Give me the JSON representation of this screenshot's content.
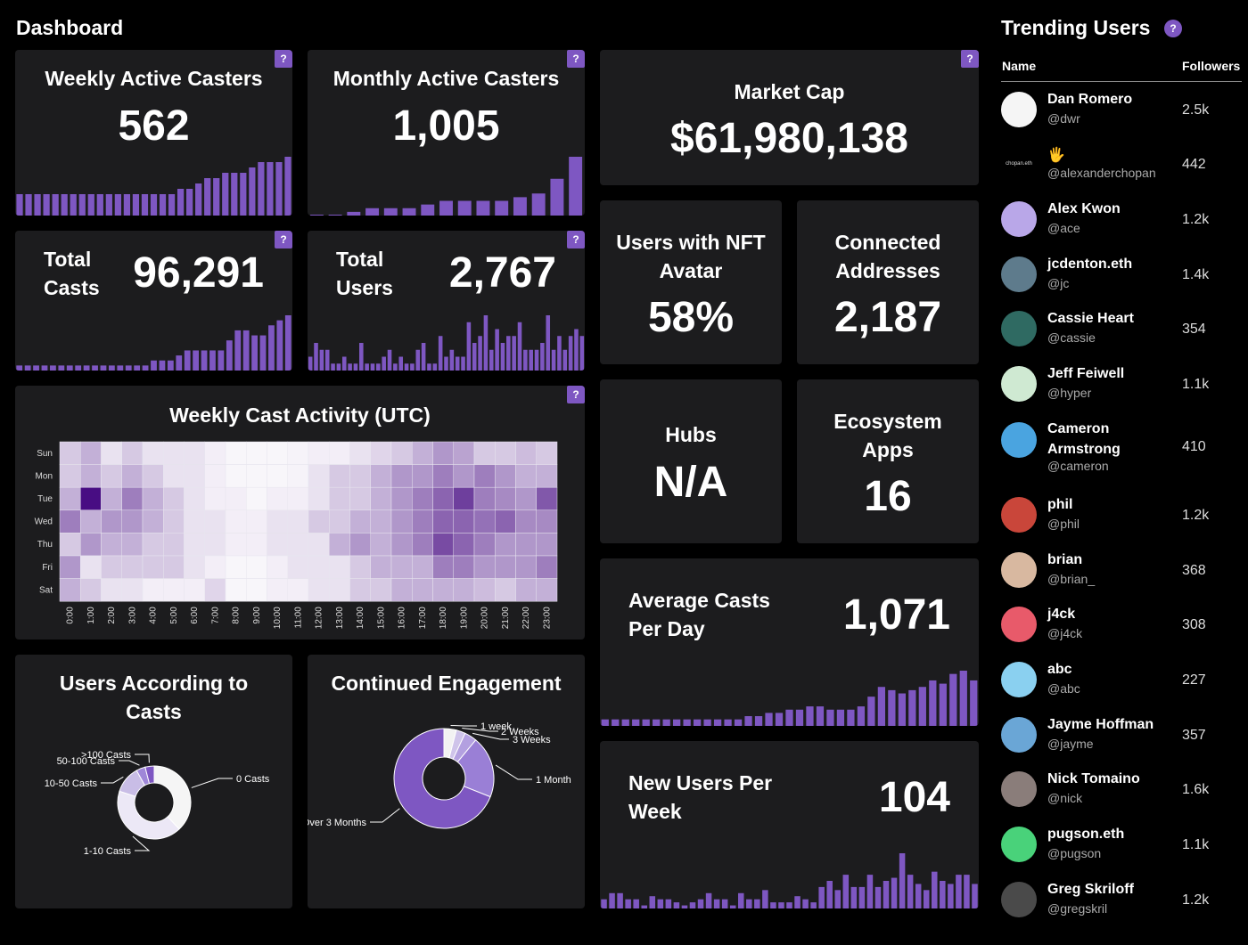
{
  "header": {
    "title": "Dashboard"
  },
  "colors": {
    "accent": "#7e57c2",
    "card": "#1c1c1e",
    "bar": "#7e57c2"
  },
  "help_label": "?",
  "cards": {
    "weekly_active": {
      "title": "Weekly Active Casters",
      "value": "562",
      "bars": [
        4,
        4,
        4,
        4,
        4,
        4,
        4,
        4,
        4,
        4,
        4,
        4,
        4,
        4,
        4,
        4,
        4,
        4,
        5,
        5,
        6,
        7,
        7,
        8,
        8,
        8,
        9,
        10,
        10,
        10,
        11
      ]
    },
    "monthly_active": {
      "title": "Monthly Active Casters",
      "value": "1,005",
      "bars": [
        0,
        0,
        1,
        2,
        2,
        2,
        3,
        4,
        4,
        4,
        4,
        5,
        6,
        10,
        16
      ]
    },
    "total_casts": {
      "title": "Total Casts",
      "value": "96,291",
      "bars": [
        1,
        1,
        1,
        1,
        1,
        1,
        1,
        1,
        1,
        1,
        1,
        1,
        1,
        1,
        1,
        1,
        2,
        2,
        2,
        3,
        4,
        4,
        4,
        4,
        4,
        6,
        8,
        8,
        7,
        7,
        9,
        10,
        11
      ]
    },
    "total_users": {
      "title": "Total Users",
      "value": "2,767",
      "bars": [
        2,
        4,
        3,
        3,
        1,
        1,
        2,
        1,
        1,
        4,
        1,
        1,
        1,
        2,
        3,
        1,
        2,
        1,
        1,
        3,
        4,
        1,
        1,
        5,
        2,
        3,
        2,
        2,
        7,
        4,
        5,
        8,
        3,
        6,
        4,
        5,
        5,
        7,
        3,
        3,
        3,
        4,
        8,
        3,
        5,
        3,
        5,
        6,
        5
      ]
    },
    "market_cap": {
      "title": "Market Cap",
      "value": "$61,980,138"
    },
    "nft_avatar": {
      "title": "Users with NFT Avatar",
      "value": "58%"
    },
    "connected": {
      "title": "Connected Addresses",
      "value": "2,187"
    },
    "hubs": {
      "title": "Hubs",
      "value": "N/A"
    },
    "apps": {
      "title": "Ecosystem Apps",
      "value": "16"
    },
    "avg_casts": {
      "title": "Average Casts Per Day",
      "value": "1,071",
      "bars": [
        2,
        2,
        2,
        2,
        2,
        2,
        2,
        2,
        2,
        2,
        2,
        2,
        2,
        2,
        3,
        3,
        4,
        4,
        5,
        5,
        6,
        6,
        5,
        5,
        5,
        6,
        9,
        12,
        11,
        10,
        11,
        12,
        14,
        13,
        16,
        17,
        14
      ]
    },
    "new_users": {
      "title": "New Users Per Week",
      "value": "104",
      "bars": [
        3,
        5,
        5,
        3,
        3,
        1,
        4,
        3,
        3,
        2,
        1,
        2,
        3,
        5,
        3,
        3,
        1,
        5,
        3,
        3,
        6,
        2,
        2,
        2,
        4,
        3,
        2,
        7,
        9,
        6,
        11,
        7,
        7,
        11,
        7,
        9,
        10,
        18,
        11,
        8,
        6,
        12,
        9,
        8,
        11,
        11,
        8
      ]
    }
  },
  "chart_data": [
    {
      "type": "heatmap",
      "title": "Weekly Cast Activity (UTC)",
      "y_categories": [
        "Sun",
        "Mon",
        "Tue",
        "Wed",
        "Thu",
        "Fri",
        "Sat"
      ],
      "x_categories": [
        "0:00",
        "1:00",
        "2:00",
        "3:00",
        "4:00",
        "5:00",
        "6:00",
        "7:00",
        "8:00",
        "9:00",
        "10:00",
        "11:00",
        "12:00",
        "13:00",
        "14:00",
        "15:00",
        "16:00",
        "17:00",
        "18:00",
        "19:00",
        "20:00",
        "21:00",
        "22:00",
        "23:00"
      ],
      "values": [
        [
          0.2,
          0.3,
          0.1,
          0.2,
          0.1,
          0.1,
          0.1,
          0.05,
          0.02,
          0.02,
          0.02,
          0.03,
          0.05,
          0.05,
          0.1,
          0.15,
          0.2,
          0.3,
          0.4,
          0.35,
          0.2,
          0.2,
          0.25,
          0.2
        ],
        [
          0.2,
          0.3,
          0.2,
          0.3,
          0.2,
          0.1,
          0.1,
          0.05,
          0.02,
          0.02,
          0.02,
          0.03,
          0.1,
          0.2,
          0.2,
          0.3,
          0.4,
          0.4,
          0.5,
          0.4,
          0.5,
          0.4,
          0.3,
          0.3
        ],
        [
          0.3,
          0.95,
          0.3,
          0.5,
          0.3,
          0.2,
          0.1,
          0.05,
          0.05,
          0.02,
          0.05,
          0.05,
          0.1,
          0.2,
          0.2,
          0.3,
          0.4,
          0.5,
          0.6,
          0.75,
          0.5,
          0.45,
          0.4,
          0.65
        ],
        [
          0.5,
          0.3,
          0.4,
          0.4,
          0.3,
          0.2,
          0.1,
          0.1,
          0.05,
          0.05,
          0.1,
          0.1,
          0.2,
          0.2,
          0.3,
          0.3,
          0.4,
          0.5,
          0.6,
          0.6,
          0.55,
          0.6,
          0.45,
          0.45
        ],
        [
          0.2,
          0.4,
          0.3,
          0.3,
          0.2,
          0.2,
          0.1,
          0.1,
          0.05,
          0.05,
          0.1,
          0.1,
          0.1,
          0.3,
          0.4,
          0.3,
          0.4,
          0.5,
          0.7,
          0.6,
          0.5,
          0.4,
          0.4,
          0.4
        ],
        [
          0.4,
          0.1,
          0.2,
          0.2,
          0.2,
          0.2,
          0.1,
          0.05,
          0.02,
          0.02,
          0.05,
          0.1,
          0.1,
          0.1,
          0.2,
          0.3,
          0.3,
          0.3,
          0.5,
          0.5,
          0.4,
          0.4,
          0.4,
          0.5
        ],
        [
          0.3,
          0.2,
          0.1,
          0.1,
          0.05,
          0.05,
          0.05,
          0.15,
          0.02,
          0.02,
          0.05,
          0.05,
          0.1,
          0.1,
          0.2,
          0.2,
          0.3,
          0.3,
          0.3,
          0.3,
          0.25,
          0.2,
          0.3,
          0.3
        ]
      ]
    },
    {
      "type": "pie",
      "title": "Users According to Casts",
      "categories": [
        "0 Casts",
        "1-10 Casts",
        "10-50 Casts",
        "50-100 Casts",
        ">100 Casts"
      ],
      "values": [
        38,
        42,
        12,
        4,
        4
      ],
      "colors": [
        "#f5f5f5",
        "#ece8f6",
        "#c9bde6",
        "#9f87d8",
        "#7e57c2"
      ]
    },
    {
      "type": "pie",
      "title": "Continued Engagement",
      "categories": [
        "1 week",
        "2 Weeks",
        "3 Weeks",
        "1 Month",
        "Over 3 Months"
      ],
      "values": [
        4,
        3,
        4,
        20,
        69
      ],
      "colors": [
        "#f2f2f2",
        "#cfc4ea",
        "#b3a0e0",
        "#9a7fd6",
        "#7e57c2"
      ]
    }
  ],
  "trending": {
    "title": "Trending Users",
    "col_name": "Name",
    "col_followers": "Followers",
    "users": [
      {
        "name": "Dan Romero",
        "handle": "@dwr",
        "followers": "2.5k",
        "color": "#f5f5f5"
      },
      {
        "name": "🖐",
        "handle": "@alexanderchopan",
        "followers": "442",
        "color": "#000000",
        "avatar_text": "chopan.eth"
      },
      {
        "name": "Alex Kwon",
        "handle": "@ace",
        "followers": "1.2k",
        "color": "#b9a7e8"
      },
      {
        "name": "jcdenton.eth",
        "handle": "@jc",
        "followers": "1.4k",
        "color": "#5e7b8c"
      },
      {
        "name": "Cassie Heart",
        "handle": "@cassie",
        "followers": "354",
        "color": "#2f6a62"
      },
      {
        "name": "Jeff Feiwell",
        "handle": "@hyper",
        "followers": "1.1k",
        "color": "#cfe9d2"
      },
      {
        "name": "Cameron Armstrong",
        "handle": "@cameron",
        "followers": "410",
        "color": "#4aa4e0"
      },
      {
        "name": "phil",
        "handle": "@phil",
        "followers": "1.2k",
        "color": "#c9463a"
      },
      {
        "name": "brian",
        "handle": "@brian_",
        "followers": "368",
        "color": "#d8b8a0"
      },
      {
        "name": "j4ck",
        "handle": "@j4ck",
        "followers": "308",
        "color": "#e85a6a"
      },
      {
        "name": "abc",
        "handle": "@abc",
        "followers": "227",
        "color": "#8ad0f0"
      },
      {
        "name": "Jayme Hoffman",
        "handle": "@jayme",
        "followers": "357",
        "color": "#6aa6d6"
      },
      {
        "name": "Nick Tomaino",
        "handle": "@nick",
        "followers": "1.6k",
        "color": "#8a7d7a"
      },
      {
        "name": "pugson.eth",
        "handle": "@pugson",
        "followers": "1.1k",
        "color": "#49d27a"
      },
      {
        "name": "Greg Skriloff",
        "handle": "@gregskril",
        "followers": "1.2k",
        "color": "#4a4a4a"
      }
    ]
  }
}
